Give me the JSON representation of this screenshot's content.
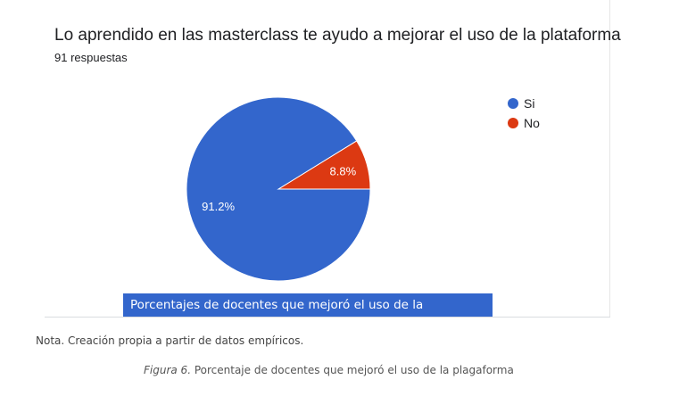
{
  "chart_data": {
    "type": "pie",
    "title": "Lo aprendido en las masterclass te ayudo a mejorar el uso de la plataforma",
    "subtitle": "91 respuestas",
    "categories": [
      "Si",
      "No"
    ],
    "values": [
      91.2,
      8.8
    ],
    "data_labels": [
      "91.2%",
      "8.8%"
    ],
    "colors": [
      "#3366cc",
      "#dc3912"
    ],
    "legend": "right"
  },
  "caption_box": "Porcentajes de docentes que mejoró el uso de la plataforma",
  "nota": "Nota. Creación propia a partir de datos empíricos.",
  "figure": {
    "label": "Figura 6.",
    "text": " Porcentaje de docentes que mejoró el uso de la plagaforma"
  }
}
